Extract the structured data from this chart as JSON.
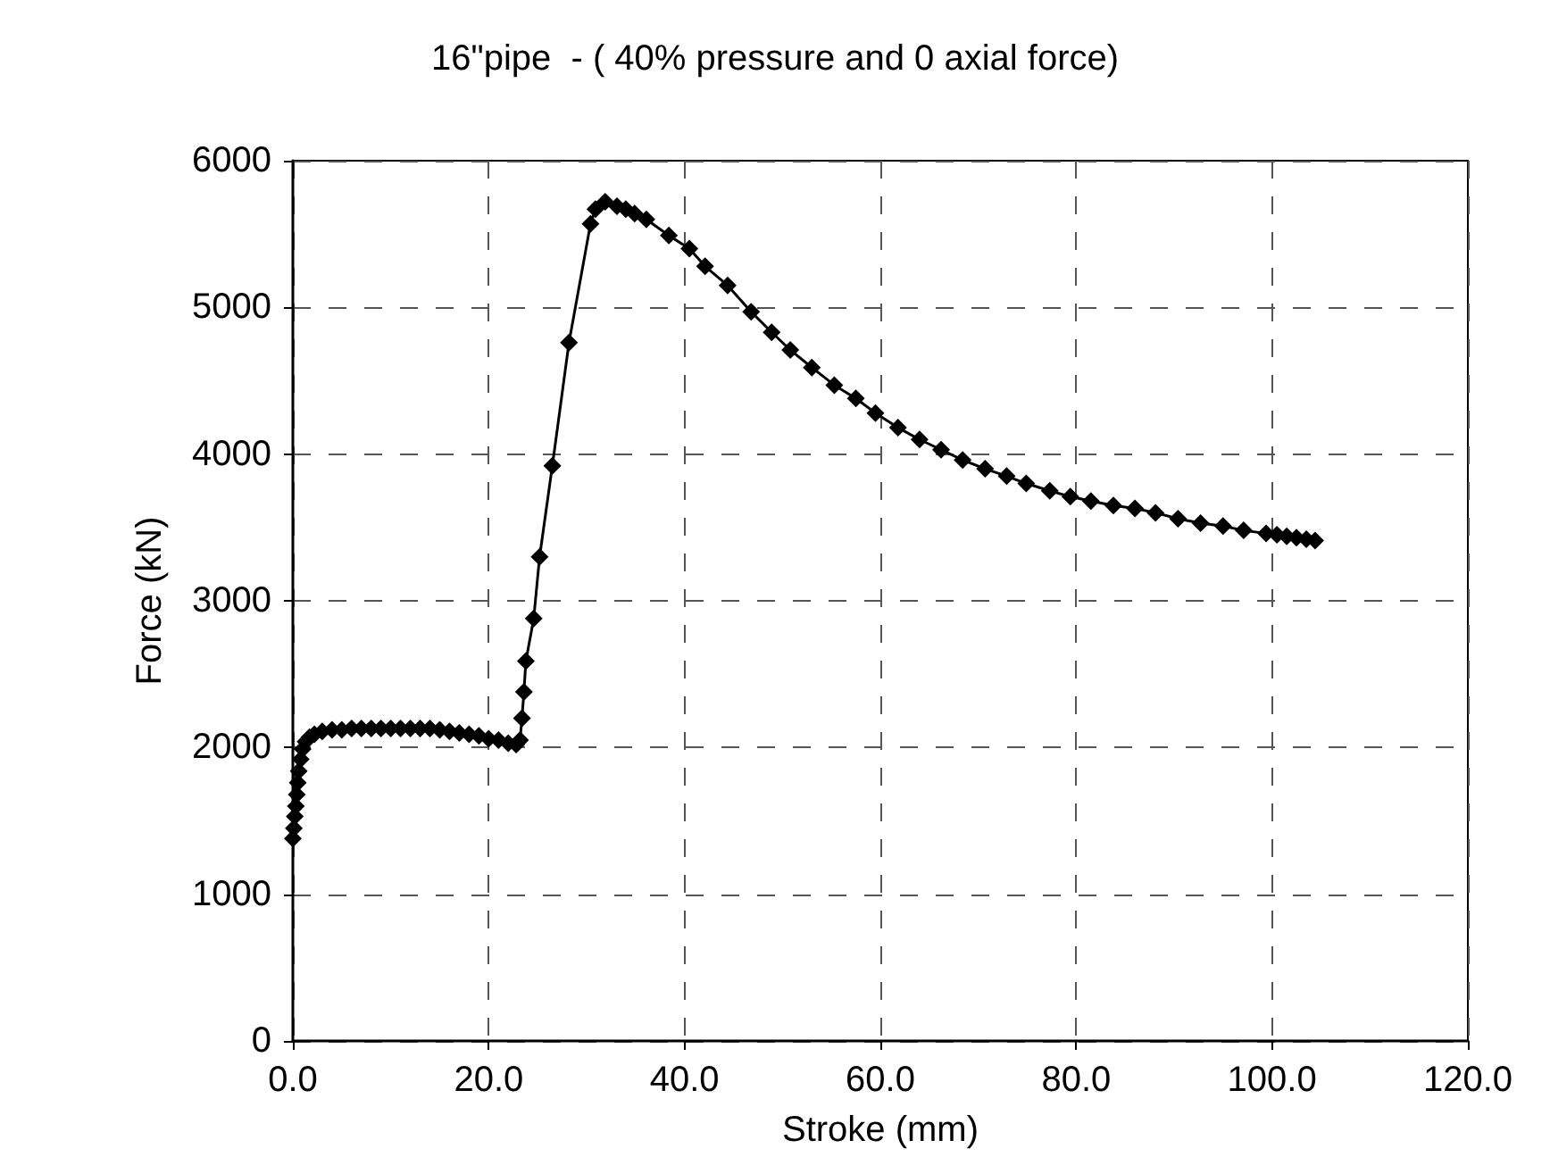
{
  "chart_data": {
    "type": "line",
    "title": "16\"pipe  - ( 40% pressure and 0 axial force)",
    "xlabel": "Stroke (mm)",
    "ylabel": "Force (kN)",
    "x": [
      0,
      0.1,
      0.2,
      0.3,
      0.4,
      0.5,
      0.6,
      0.8,
      1.0,
      1.3,
      1.7,
      2.2,
      3,
      4,
      5,
      6,
      7,
      8,
      9,
      10,
      11,
      12,
      13,
      14,
      15,
      16,
      17,
      18,
      19,
      20,
      21,
      22,
      22.8,
      23.2,
      23.4,
      23.6,
      23.8,
      24.6,
      25.2,
      26.5,
      28.2,
      30.4,
      30.9,
      31.9,
      33.1,
      34.0,
      34.9,
      36.1,
      38.4,
      40.5,
      42.1,
      44.4,
      46.8,
      48.9,
      50.8,
      53.0,
      55.3,
      57.5,
      59.5,
      61.8,
      64.0,
      66.2,
      68.4,
      70.7,
      72.9,
      74.9,
      77.3,
      79.4,
      81.5,
      83.8,
      86.0,
      88.1,
      90.4,
      92.7,
      95.0,
      97.1,
      99.4,
      100.5,
      101.5,
      102.5,
      103.5,
      104.4
    ],
    "series": [
      {
        "color": "#000000",
        "values": [
          1380,
          1450,
          1530,
          1600,
          1680,
          1760,
          1840,
          1920,
          1990,
          2040,
          2070,
          2090,
          2110,
          2120,
          2120,
          2130,
          2130,
          2130,
          2130,
          2130,
          2130,
          2130,
          2130,
          2130,
          2120,
          2110,
          2100,
          2090,
          2080,
          2060,
          2050,
          2030,
          2020,
          2050,
          2200,
          2380,
          2590,
          2880,
          3300,
          3920,
          4760,
          5570,
          5670,
          5720,
          5690,
          5670,
          5640,
          5600,
          5490,
          5400,
          5280,
          5150,
          4970,
          4830,
          4710,
          4590,
          4470,
          4380,
          4280,
          4180,
          4100,
          4030,
          3960,
          3900,
          3850,
          3800,
          3750,
          3710,
          3680,
          3650,
          3630,
          3600,
          3560,
          3530,
          3510,
          3480,
          3460,
          3450,
          3440,
          3430,
          3420,
          3410
        ]
      }
    ],
    "xlim": [
      0,
      120
    ],
    "xticks": [
      {
        "value": 0,
        "label": "0.0"
      },
      {
        "value": 20,
        "label": "20.0"
      },
      {
        "value": 40,
        "label": "40.0"
      },
      {
        "value": 60,
        "label": "60.0"
      },
      {
        "value": 80,
        "label": "80.0"
      },
      {
        "value": 100,
        "label": "100.0"
      },
      {
        "value": 120,
        "label": "120.0"
      }
    ],
    "ylim": [
      0,
      6000
    ],
    "yticks": [
      0,
      1000,
      2000,
      3000,
      4000,
      5000,
      6000
    ],
    "grid": true,
    "marker": "diamond",
    "line_style": "solid"
  }
}
